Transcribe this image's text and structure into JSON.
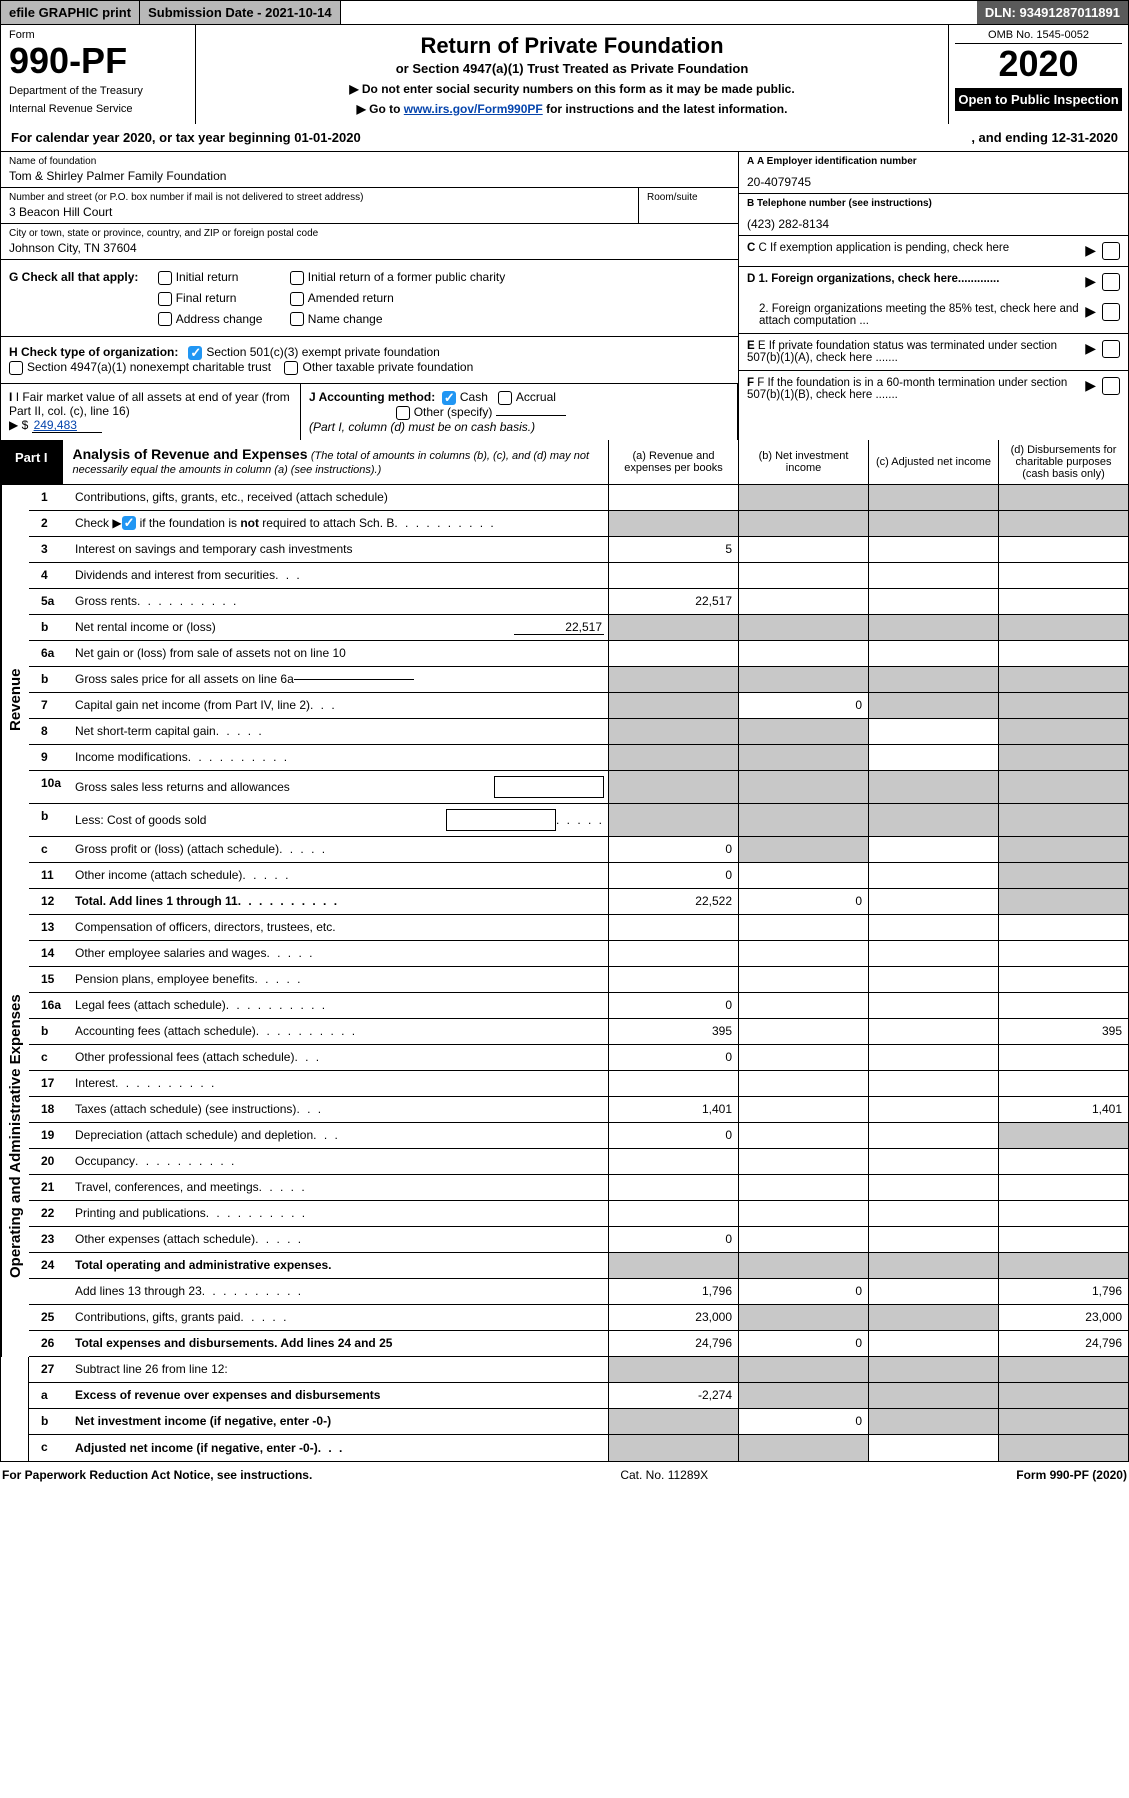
{
  "topbar": {
    "efile": "efile GRAPHIC print",
    "submission": "Submission Date - 2021-10-14",
    "dln": "DLN: 93491287011891"
  },
  "header": {
    "form_label": "Form",
    "form_number": "990-PF",
    "dept1": "Department of the Treasury",
    "dept2": "Internal Revenue Service",
    "title": "Return of Private Foundation",
    "subtitle1": "or Section 4947(a)(1) Trust Treated as Private Foundation",
    "subtitle2a": "▶ Do not enter social security numbers on this form as it may be made public.",
    "subtitle2b_pre": "▶ Go to ",
    "subtitle2b_link": "www.irs.gov/Form990PF",
    "subtitle2b_post": " for instructions and the latest information.",
    "omb": "OMB No. 1545-0052",
    "year": "2020",
    "inspect": "Open to Public Inspection"
  },
  "calyear": {
    "left": "For calendar year 2020, or tax year beginning 01-01-2020",
    "right": ", and ending 12-31-2020"
  },
  "info": {
    "name_lbl": "Name of foundation",
    "name_val": "Tom & Shirley Palmer Family Foundation",
    "addr_lbl": "Number and street (or P.O. box number if mail is not delivered to street address)",
    "addr_val": "3 Beacon Hill Court",
    "room_lbl": "Room/suite",
    "city_lbl": "City or town, state or province, country, and ZIP or foreign postal code",
    "city_val": "Johnson City, TN  37604",
    "a_lbl": "A Employer identification number",
    "a_val": "20-4079745",
    "b_lbl": "B Telephone number (see instructions)",
    "b_val": "(423) 282-8134",
    "c_lbl": "C If exemption application is pending, check here",
    "d1_lbl": "D 1. Foreign organizations, check here.............",
    "d2_lbl": "2. Foreign organizations meeting the 85% test, check here and attach computation ...",
    "e_lbl": "E  If private foundation status was terminated under section 507(b)(1)(A), check here .......",
    "f_lbl": "F  If the foundation is in a 60-month termination under section 507(b)(1)(B), check here ......."
  },
  "g": {
    "label": "G Check all that apply:",
    "opts": [
      "Initial return",
      "Final return",
      "Address change",
      "Initial return of a former public charity",
      "Amended return",
      "Name change"
    ]
  },
  "h": {
    "label": "H Check type of organization:",
    "o1": "Section 501(c)(3) exempt private foundation",
    "o2": "Section 4947(a)(1) nonexempt charitable trust",
    "o3": "Other taxable private foundation"
  },
  "i": {
    "label": "I Fair market value of all assets at end of year (from Part II, col. (c), line 16)",
    "val_pre": "▶ $ ",
    "val": "249,483"
  },
  "j": {
    "label": "J Accounting method:",
    "cash": "Cash",
    "accrual": "Accrual",
    "other": "Other (specify)",
    "note": "(Part I, column (d) must be on cash basis.)"
  },
  "part1": {
    "tab": "Part I",
    "title": "Analysis of Revenue and Expenses",
    "note": "(The total of amounts in columns (b), (c), and (d) may not necessarily equal the amounts in column (a) (see instructions).)",
    "col_a": "(a)   Revenue and expenses per books",
    "col_b": "(b)   Net investment income",
    "col_c": "(c)   Adjusted net income",
    "col_d": "(d)   Disbursements for charitable purposes (cash basis only)"
  },
  "sections": {
    "revenue": "Revenue",
    "opex": "Operating and Administrative Expenses"
  },
  "lines": {
    "l1": {
      "n": "1",
      "d": "Contributions, gifts, grants, etc., received (attach schedule)"
    },
    "l2": {
      "n": "2",
      "d_pre": "Check ▶ ",
      "d_post": " if the foundation is not required to attach Sch. B",
      "dots": true
    },
    "l3": {
      "n": "3",
      "d": "Interest on savings and temporary cash investments",
      "a": "5"
    },
    "l4": {
      "n": "4",
      "d": "Dividends and interest from securities",
      "dots": "xs"
    },
    "l5a": {
      "n": "5a",
      "d": "Gross rents",
      "dots": true,
      "a": "22,517"
    },
    "l5b": {
      "n": "b",
      "d": "Net rental income or (loss)",
      "box": "22,517"
    },
    "l6a": {
      "n": "6a",
      "d": "Net gain or (loss) from sale of assets not on line 10"
    },
    "l6b": {
      "n": "b",
      "d": "Gross sales price for all assets on line 6a",
      "boxline": true
    },
    "l7": {
      "n": "7",
      "d": "Capital gain net income (from Part IV, line 2)",
      "dots": "xs",
      "b": "0"
    },
    "l8": {
      "n": "8",
      "d": "Net short-term capital gain",
      "dots": "s"
    },
    "l9": {
      "n": "9",
      "d": "Income modifications",
      "dots": true
    },
    "l10a": {
      "n": "10a",
      "d": "Gross sales less returns and allowances",
      "boxright": true
    },
    "l10b": {
      "n": "b",
      "d": "Less: Cost of goods sold",
      "dots": "s",
      "boxright": true
    },
    "l10c": {
      "n": "c",
      "d": "Gross profit or (loss) (attach schedule)",
      "dots": "s",
      "a": "0"
    },
    "l11": {
      "n": "11",
      "d": "Other income (attach schedule)",
      "dots": "s",
      "a": "0"
    },
    "l12": {
      "n": "12",
      "d": "Total. Add lines 1 through 11",
      "dots": true,
      "bold": true,
      "a": "22,522",
      "b": "0"
    },
    "l13": {
      "n": "13",
      "d": "Compensation of officers, directors, trustees, etc."
    },
    "l14": {
      "n": "14",
      "d": "Other employee salaries and wages",
      "dots": "s"
    },
    "l15": {
      "n": "15",
      "d": "Pension plans, employee benefits",
      "dots": "s"
    },
    "l16a": {
      "n": "16a",
      "d": "Legal fees (attach schedule)",
      "dots": true,
      "a": "0"
    },
    "l16b": {
      "n": "b",
      "d": "Accounting fees (attach schedule)",
      "dots": true,
      "a": "395",
      "dd": "395"
    },
    "l16c": {
      "n": "c",
      "d": "Other professional fees (attach schedule)",
      "dots": "xs",
      "a": "0"
    },
    "l17": {
      "n": "17",
      "d": "Interest",
      "dots": true
    },
    "l18": {
      "n": "18",
      "d": "Taxes (attach schedule) (see instructions)",
      "dots": "xs",
      "a": "1,401",
      "dd": "1,401"
    },
    "l19": {
      "n": "19",
      "d": "Depreciation (attach schedule) and depletion",
      "dots": "xs",
      "a": "0"
    },
    "l20": {
      "n": "20",
      "d": "Occupancy",
      "dots": true
    },
    "l21": {
      "n": "21",
      "d": "Travel, conferences, and meetings",
      "dots": "s"
    },
    "l22": {
      "n": "22",
      "d": "Printing and publications",
      "dots": true
    },
    "l23": {
      "n": "23",
      "d": "Other expenses (attach schedule)",
      "dots": "s",
      "a": "0"
    },
    "l24": {
      "n": "24",
      "d": "Total operating and administrative expenses.",
      "bold": true
    },
    "l24s": {
      "n": "",
      "d": "Add lines 13 through 23",
      "dots": true,
      "a": "1,796",
      "b": "0",
      "dd": "1,796"
    },
    "l25": {
      "n": "25",
      "d": "Contributions, gifts, grants paid",
      "dots": "s",
      "a": "23,000",
      "dd": "23,000"
    },
    "l26": {
      "n": "26",
      "d": "Total expenses and disbursements. Add lines 24 and 25",
      "bold": true,
      "a": "24,796",
      "b": "0",
      "dd": "24,796"
    },
    "l27": {
      "n": "27",
      "d": "Subtract line 26 from line 12:"
    },
    "l27a": {
      "n": "a",
      "d": "Excess of revenue over expenses and disbursements",
      "bold": true,
      "a": "-2,274"
    },
    "l27b": {
      "n": "b",
      "d": "Net investment income (if negative, enter -0-)",
      "bold": true,
      "b": "0"
    },
    "l27c": {
      "n": "c",
      "d": "Adjusted net income (if negative, enter -0-)",
      "bold": true,
      "dots": "xs"
    }
  },
  "footer": {
    "left": "For Paperwork Reduction Act Notice, see instructions.",
    "mid": "Cat. No. 11289X",
    "right": "Form 990-PF (2020)"
  },
  "colors": {
    "grey_bg": "#c8c8c8",
    "link": "#0645ad"
  }
}
